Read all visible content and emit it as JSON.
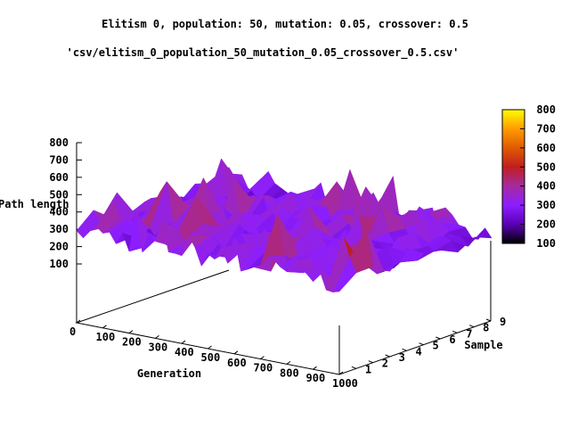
{
  "chart_data": {
    "type": "surface",
    "title": "Elitism 0, population: 50, mutation: 0.05, crossover: 0.5",
    "series_label": "'csv/elitism_0_population_50_mutation_0.05_crossover_0.5.csv'",
    "xlabel": "Generation",
    "ylabel": "Sample",
    "zlabel": "Path length",
    "xlim": [
      0,
      1000
    ],
    "ylim": [
      0,
      9
    ],
    "zlim": [
      100,
      800
    ],
    "x_ticks": [
      "0",
      "100",
      "200",
      "300",
      "400",
      "500",
      "600",
      "700",
      "800",
      "900",
      "1000"
    ],
    "y_ticks": [
      "1",
      "2",
      "3",
      "4",
      "5",
      "6",
      "7",
      "8",
      "9"
    ],
    "z_ticks": [
      "100",
      "200",
      "300",
      "400",
      "500",
      "600",
      "700",
      "800"
    ],
    "colorbar": {
      "range": [
        100,
        800
      ],
      "ticks": [
        "100",
        "200",
        "300",
        "400",
        "500",
        "600",
        "700",
        "800"
      ],
      "palette": [
        "#000000",
        "#5a00b4",
        "#8c1eff",
        "#a52aa0",
        "#c01e1e",
        "#e05a00",
        "#ff9b00",
        "#ffff00"
      ]
    },
    "surface_approx": {
      "baseline_path_length": 300,
      "typical_range": [
        200,
        450
      ],
      "peak_max": 790
    }
  }
}
